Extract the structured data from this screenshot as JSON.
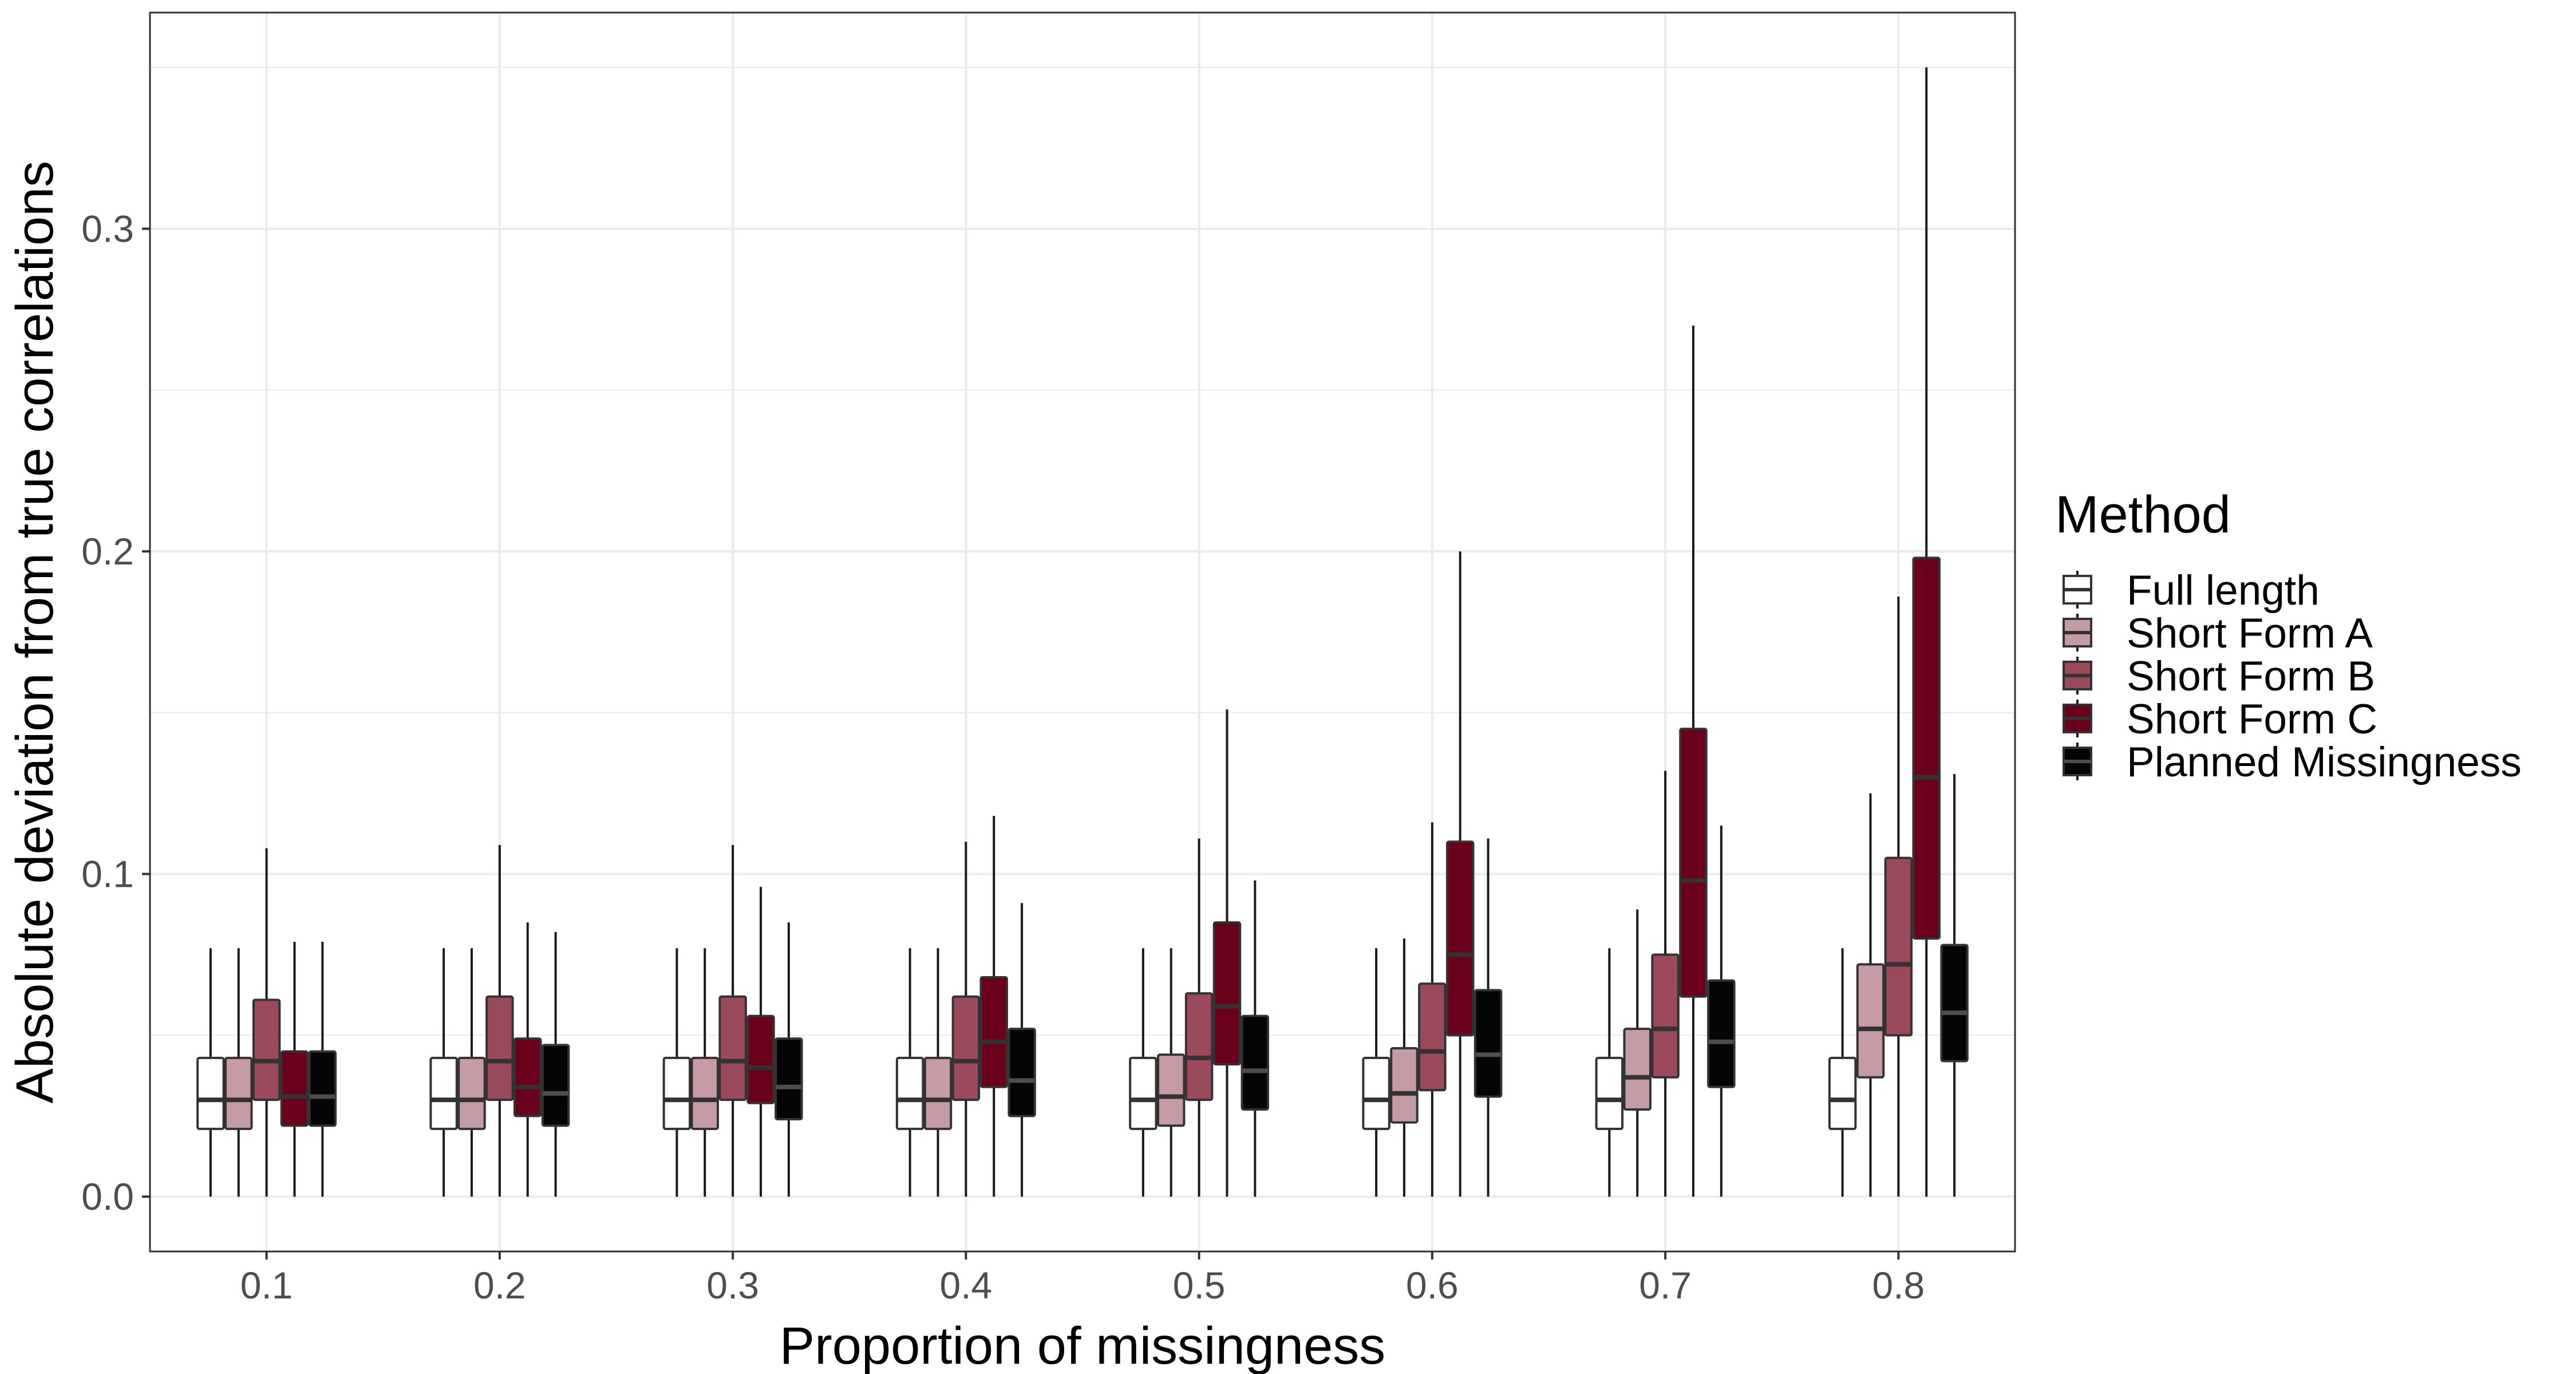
{
  "chart_data": {
    "type": "boxplot",
    "xlabel": "Proportion of missingness",
    "ylabel": "Absolute deviation from true correlations",
    "ylim": [
      -0.017,
      0.367
    ],
    "y_ticks": [
      "0.0",
      "0.1",
      "0.2",
      "0.3"
    ],
    "y_tick_values": [
      0,
      0.1,
      0.2,
      0.3
    ],
    "grid": true,
    "legend_position": "right",
    "legend_title": "Method",
    "categories": [
      "0.1",
      "0.2",
      "0.3",
      "0.4",
      "0.5",
      "0.6",
      "0.7",
      "0.8"
    ],
    "series": [
      {
        "name": "Full length",
        "color": "#ffffff",
        "median_color": "#333333",
        "boxes": [
          {
            "min": 0.0,
            "q1": 0.021,
            "median": 0.03,
            "q3": 0.043,
            "max": 0.077
          },
          {
            "min": 0.0,
            "q1": 0.021,
            "median": 0.03,
            "q3": 0.043,
            "max": 0.077
          },
          {
            "min": 0.0,
            "q1": 0.021,
            "median": 0.03,
            "q3": 0.043,
            "max": 0.077
          },
          {
            "min": 0.0,
            "q1": 0.021,
            "median": 0.03,
            "q3": 0.043,
            "max": 0.077
          },
          {
            "min": 0.0,
            "q1": 0.021,
            "median": 0.03,
            "q3": 0.043,
            "max": 0.077
          },
          {
            "min": 0.0,
            "q1": 0.021,
            "median": 0.03,
            "q3": 0.043,
            "max": 0.077
          },
          {
            "min": 0.0,
            "q1": 0.021,
            "median": 0.03,
            "q3": 0.043,
            "max": 0.077
          },
          {
            "min": 0.0,
            "q1": 0.021,
            "median": 0.03,
            "q3": 0.043,
            "max": 0.077
          }
        ]
      },
      {
        "name": "Short Form A",
        "color": "#c59ca5",
        "median_color": "#333333",
        "boxes": [
          {
            "min": 0.0,
            "q1": 0.021,
            "median": 0.03,
            "q3": 0.043,
            "max": 0.077
          },
          {
            "min": 0.0,
            "q1": 0.021,
            "median": 0.03,
            "q3": 0.043,
            "max": 0.077
          },
          {
            "min": 0.0,
            "q1": 0.021,
            "median": 0.03,
            "q3": 0.043,
            "max": 0.077
          },
          {
            "min": 0.0,
            "q1": 0.021,
            "median": 0.03,
            "q3": 0.043,
            "max": 0.077
          },
          {
            "min": 0.0,
            "q1": 0.022,
            "median": 0.031,
            "q3": 0.044,
            "max": 0.077
          },
          {
            "min": 0.0,
            "q1": 0.023,
            "median": 0.032,
            "q3": 0.046,
            "max": 0.08
          },
          {
            "min": 0.0,
            "q1": 0.027,
            "median": 0.037,
            "q3": 0.052,
            "max": 0.089
          },
          {
            "min": 0.0,
            "q1": 0.037,
            "median": 0.052,
            "q3": 0.072,
            "max": 0.125
          }
        ]
      },
      {
        "name": "Short Form B",
        "color": "#9a4a5a",
        "median_color": "#333333",
        "boxes": [
          {
            "min": 0.0,
            "q1": 0.03,
            "median": 0.042,
            "q3": 0.061,
            "max": 0.108
          },
          {
            "min": 0.0,
            "q1": 0.03,
            "median": 0.042,
            "q3": 0.062,
            "max": 0.109
          },
          {
            "min": 0.0,
            "q1": 0.03,
            "median": 0.042,
            "q3": 0.062,
            "max": 0.109
          },
          {
            "min": 0.0,
            "q1": 0.03,
            "median": 0.042,
            "q3": 0.062,
            "max": 0.11
          },
          {
            "min": 0.0,
            "q1": 0.03,
            "median": 0.043,
            "q3": 0.063,
            "max": 0.111
          },
          {
            "min": 0.0,
            "q1": 0.033,
            "median": 0.045,
            "q3": 0.066,
            "max": 0.116
          },
          {
            "min": 0.0,
            "q1": 0.037,
            "median": 0.052,
            "q3": 0.075,
            "max": 0.132
          },
          {
            "min": 0.0,
            "q1": 0.05,
            "median": 0.072,
            "q3": 0.105,
            "max": 0.186
          }
        ]
      },
      {
        "name": "Short Form C",
        "color": "#6a0019",
        "median_color": "#333333",
        "boxes": [
          {
            "min": 0.0,
            "q1": 0.022,
            "median": 0.031,
            "q3": 0.045,
            "max": 0.079
          },
          {
            "min": 0.0,
            "q1": 0.025,
            "median": 0.034,
            "q3": 0.049,
            "max": 0.085
          },
          {
            "min": 0.0,
            "q1": 0.029,
            "median": 0.04,
            "q3": 0.056,
            "max": 0.096
          },
          {
            "min": 0.0,
            "q1": 0.034,
            "median": 0.048,
            "q3": 0.068,
            "max": 0.118
          },
          {
            "min": 0.0,
            "q1": 0.041,
            "median": 0.059,
            "q3": 0.085,
            "max": 0.151
          },
          {
            "min": 0.0,
            "q1": 0.05,
            "median": 0.075,
            "q3": 0.11,
            "max": 0.2
          },
          {
            "min": 0.0,
            "q1": 0.062,
            "median": 0.098,
            "q3": 0.145,
            "max": 0.27
          },
          {
            "min": 0.0,
            "q1": 0.08,
            "median": 0.13,
            "q3": 0.198,
            "max": 0.35
          }
        ]
      },
      {
        "name": "Planned Missingness",
        "color": "#050505",
        "median_color": "#4d4d4d",
        "boxes": [
          {
            "min": 0.0,
            "q1": 0.022,
            "median": 0.031,
            "q3": 0.045,
            "max": 0.079
          },
          {
            "min": 0.0,
            "q1": 0.022,
            "median": 0.032,
            "q3": 0.047,
            "max": 0.082
          },
          {
            "min": 0.0,
            "q1": 0.024,
            "median": 0.034,
            "q3": 0.049,
            "max": 0.085
          },
          {
            "min": 0.0,
            "q1": 0.025,
            "median": 0.036,
            "q3": 0.052,
            "max": 0.091
          },
          {
            "min": 0.0,
            "q1": 0.027,
            "median": 0.039,
            "q3": 0.056,
            "max": 0.098
          },
          {
            "min": 0.0,
            "q1": 0.031,
            "median": 0.044,
            "q3": 0.064,
            "max": 0.111
          },
          {
            "min": 0.0,
            "q1": 0.034,
            "median": 0.048,
            "q3": 0.067,
            "max": 0.115
          },
          {
            "min": 0.0,
            "q1": 0.042,
            "median": 0.057,
            "q3": 0.078,
            "max": 0.131
          }
        ]
      }
    ]
  }
}
